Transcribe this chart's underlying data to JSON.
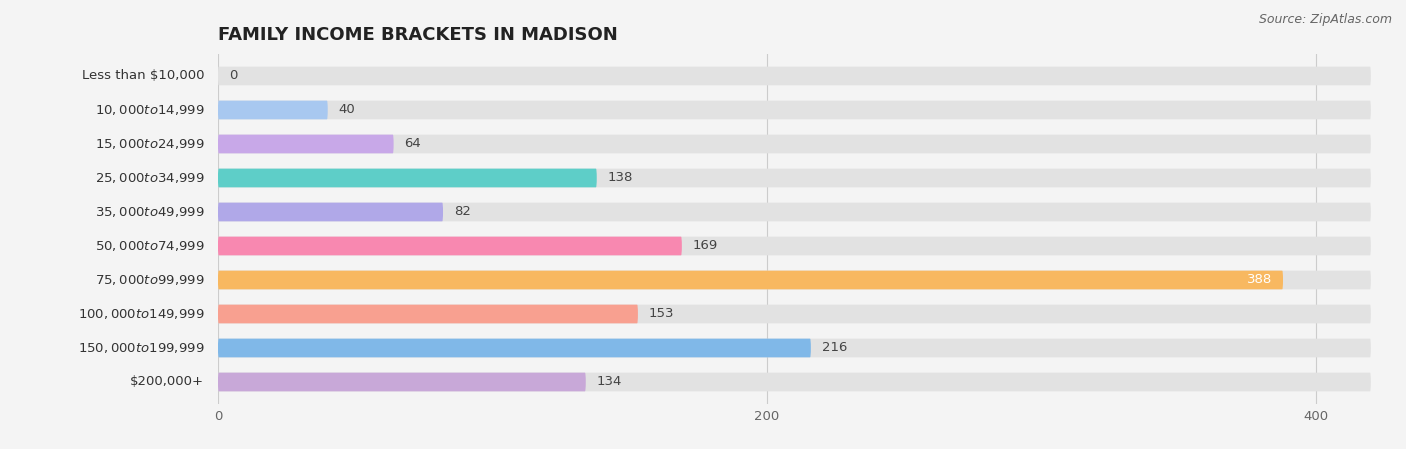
{
  "title": "FAMILY INCOME BRACKETS IN MADISON",
  "source": "Source: ZipAtlas.com",
  "categories": [
    "Less than $10,000",
    "$10,000 to $14,999",
    "$15,000 to $24,999",
    "$25,000 to $34,999",
    "$35,000 to $49,999",
    "$50,000 to $74,999",
    "$75,000 to $99,999",
    "$100,000 to $149,999",
    "$150,000 to $199,999",
    "$200,000+"
  ],
  "values": [
    0,
    40,
    64,
    138,
    82,
    169,
    388,
    153,
    216,
    134
  ],
  "bar_colors": [
    "#f4a0a8",
    "#a8c8f0",
    "#c8a8e8",
    "#5ecec8",
    "#b0a8e8",
    "#f888b0",
    "#f8b860",
    "#f8a090",
    "#80b8e8",
    "#c8a8d8"
  ],
  "max_val": 420,
  "background_color": "#f4f4f4",
  "bar_background_color": "#e2e2e2",
  "title_fontsize": 13,
  "label_fontsize": 9.5,
  "value_fontsize": 9.5,
  "source_fontsize": 9
}
